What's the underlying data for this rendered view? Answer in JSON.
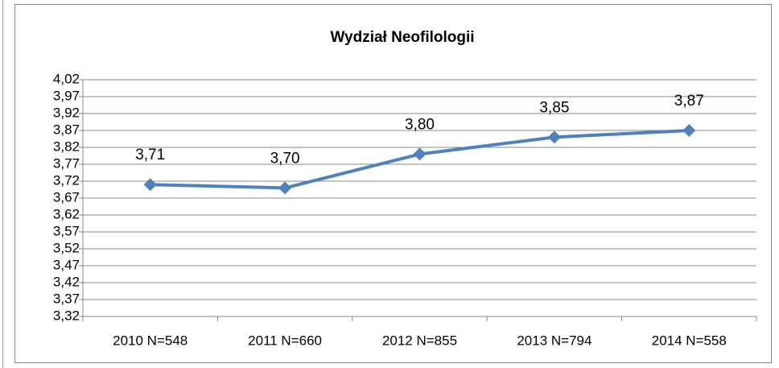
{
  "chart_data": {
    "type": "line",
    "title": "Wydział Neofilologii",
    "categories": [
      "2010 N=548",
      "2011 N=660",
      "2012 N=855",
      "2013 N=794",
      "2014 N=558"
    ],
    "values": [
      3.71,
      3.7,
      3.8,
      3.85,
      3.87
    ],
    "value_labels": [
      "3,71",
      "3,70",
      "3,80",
      "3,85",
      "3,87"
    ],
    "color": "#4f81bd",
    "ylim": [
      3.32,
      4.02
    ],
    "yticks": [
      {
        "value": 3.32,
        "label": "3,32"
      },
      {
        "value": 3.37,
        "label": "3,37"
      },
      {
        "value": 3.42,
        "label": "3,42"
      },
      {
        "value": 3.47,
        "label": "3,47"
      },
      {
        "value": 3.52,
        "label": "3,52"
      },
      {
        "value": 3.57,
        "label": "3,57"
      },
      {
        "value": 3.62,
        "label": "3,62"
      },
      {
        "value": 3.67,
        "label": "3,67"
      },
      {
        "value": 3.72,
        "label": "3,72"
      },
      {
        "value": 3.77,
        "label": "3,77"
      },
      {
        "value": 3.82,
        "label": "3,82"
      },
      {
        "value": 3.87,
        "label": "3,87"
      },
      {
        "value": 3.92,
        "label": "3,92"
      },
      {
        "value": 3.97,
        "label": "3,97"
      },
      {
        "value": 4.02,
        "label": "4,02"
      }
    ],
    "grid": true
  }
}
